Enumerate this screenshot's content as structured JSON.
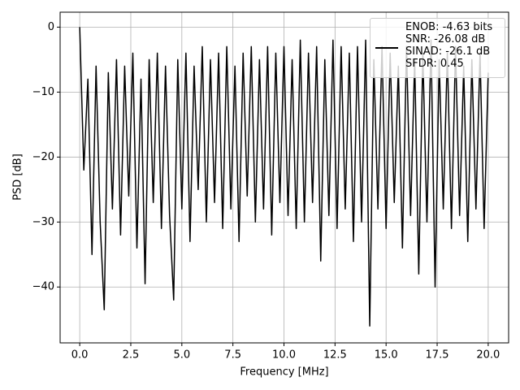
{
  "chart_data": {
    "type": "line",
    "xlabel": "Frequency [MHz]",
    "ylabel": "PSD [dB]",
    "x": [
      0,
      0.2,
      0.4,
      0.6,
      0.8,
      1,
      1.2,
      1.4,
      1.6,
      1.8,
      2,
      2.2,
      2.4,
      2.6,
      2.8,
      3,
      3.2,
      3.4,
      3.6,
      3.8,
      4,
      4.2,
      4.4,
      4.6,
      4.8,
      5,
      5.2,
      5.4,
      5.6,
      5.8,
      6,
      6.2,
      6.4,
      6.6,
      6.8,
      7,
      7.2,
      7.4,
      7.6,
      7.8,
      8,
      8.2,
      8.4,
      8.6,
      8.8,
      9,
      9.2,
      9.4,
      9.6,
      9.8,
      10,
      10.2,
      10.4,
      10.6,
      10.8,
      11,
      11.2,
      11.4,
      11.6,
      11.8,
      12,
      12.2,
      12.4,
      12.6,
      12.8,
      13,
      13.2,
      13.4,
      13.6,
      13.8,
      14,
      14.2,
      14.4,
      14.6,
      14.8,
      15,
      15.2,
      15.4,
      15.6,
      15.8,
      16,
      16.2,
      16.4,
      16.6,
      16.8,
      17,
      17.2,
      17.4,
      17.6,
      17.8,
      18,
      18.2,
      18.4,
      18.6,
      18.8,
      19,
      19.2,
      19.4,
      19.6,
      19.8,
      20
    ],
    "series": [
      {
        "name": "ENOB: -4.63 bits\nSNR: -26.08 dB\nSINAD: -26.1 dB\nSFDR: 0.45",
        "color": "#000000",
        "values": [
          0,
          -22,
          -8,
          -35,
          -6,
          -30,
          -43.5,
          -7,
          -28,
          -5,
          -32,
          -6,
          -26,
          -4,
          -34,
          -8,
          -39.5,
          -5,
          -27,
          -4,
          -31,
          -6,
          -29,
          -42,
          -5,
          -28,
          -4,
          -33,
          -6,
          -25,
          -3,
          -30,
          -5,
          -27,
          -4,
          -31,
          -3,
          -28,
          -6,
          -33,
          -4,
          -26,
          -3,
          -30,
          -5,
          -28,
          -3,
          -32,
          -4,
          -27,
          -3,
          -29,
          -5,
          -31,
          -2,
          -30,
          -4,
          -27,
          -3,
          -36,
          -5,
          -29,
          -2,
          -31,
          -3,
          -28,
          -4,
          -33,
          -3,
          -30,
          -2,
          -46,
          -5,
          -28,
          -3,
          -31,
          -4,
          -27,
          -6,
          -34,
          -3,
          -29,
          -5,
          -38,
          -4,
          -30,
          -2,
          -40,
          -5,
          -28,
          -4,
          -31,
          -3,
          -29,
          -6,
          -33,
          -5,
          -28,
          -4,
          -31,
          -7
        ]
      }
    ],
    "xlim": [
      -0.96,
      21
    ],
    "ylim": [
      -48.6,
      2.3
    ],
    "xticks": [
      {
        "value": 0,
        "label": "0.0"
      },
      2.5,
      {
        "value": 5,
        "label": "5.0"
      },
      7.5,
      {
        "value": 10,
        "label": "10.0"
      },
      12.5,
      {
        "value": 15,
        "label": "15.0"
      },
      17.5,
      {
        "value": 20,
        "label": "20.0"
      }
    ],
    "yticks": [
      {
        "value": -40,
        "label": "−40"
      },
      {
        "value": -30,
        "label": "−30"
      },
      {
        "value": -20,
        "label": "−20"
      },
      {
        "value": -10,
        "label": "−10"
      },
      0
    ],
    "grid": true,
    "legend": "upper right"
  }
}
